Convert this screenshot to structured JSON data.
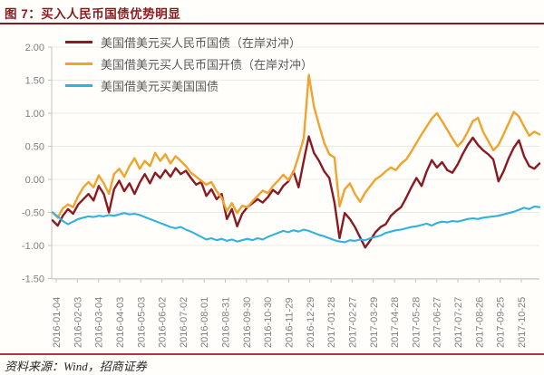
{
  "page": {
    "title": "图 7：买入人民币国债优势明显",
    "source": "资料来源：Wind，招商证券"
  },
  "colors": {
    "title_text": "#8B1B20",
    "rule_top": "#7E1D21",
    "rule_bottom": "#B03A37",
    "grid": "#E9E9E5",
    "axis": "#C3C3BF",
    "tick_label": "#7F7F7F",
    "legend_text": "#595959",
    "source_text": "#262626"
  },
  "chart_data": {
    "type": "line",
    "title": "买入人民币国债优势明显",
    "xlabel": "",
    "ylabel": "",
    "ylim": [
      -1.5,
      2.0
    ],
    "y_ticks": [
      2.0,
      1.5,
      1.0,
      0.5,
      0.0,
      -0.5,
      -1.0,
      -1.5
    ],
    "grid": "horizontal",
    "legend_position": "top-left",
    "x_tick_labels": [
      "2016-01-04",
      "2016-02-03",
      "2016-03-04",
      "2016-04-03",
      "2016-05-03",
      "2016-06-02",
      "2016-07-02",
      "2016-08-01",
      "2016-08-31",
      "2016-09-30",
      "2016-10-30",
      "2016-11-29",
      "2016-12-29",
      "2017-01-28",
      "2017-02-27",
      "2017-03-29",
      "2017-04-28",
      "2017-05-28",
      "2017-06-27",
      "2017-07-27",
      "2017-08-26",
      "2017-09-25",
      "2017-10-25"
    ],
    "series": [
      {
        "name": "美国借美元买人民币国债（在岸对冲）",
        "color": "#8A1A22",
        "values": [
          -0.62,
          -0.7,
          -0.55,
          -0.45,
          -0.52,
          -0.38,
          -0.3,
          -0.22,
          -0.32,
          -0.1,
          -0.22,
          -0.5,
          -0.15,
          -0.02,
          -0.18,
          -0.06,
          -0.22,
          -0.05,
          0.08,
          -0.06,
          0.1,
          0.02,
          0.14,
          0.04,
          0.17,
          0.08,
          0.13,
          0.02,
          -0.08,
          -0.04,
          -0.25,
          -0.15,
          -0.3,
          -0.22,
          -0.6,
          -0.45,
          -0.71,
          -0.52,
          -0.42,
          -0.36,
          -0.3,
          -0.35,
          -0.27,
          -0.16,
          -0.22,
          -0.1,
          -0.03,
          0.12,
          -0.12,
          0.28,
          0.65,
          0.4,
          0.28,
          0.12,
          0.02,
          -0.35,
          -0.89,
          -0.51,
          -0.6,
          -0.72,
          -0.88,
          -1.03,
          -0.92,
          -0.8,
          -0.72,
          -0.68,
          -0.55,
          -0.48,
          -0.42,
          -0.28,
          -0.12,
          0.02,
          -0.1,
          0.12,
          0.29,
          0.18,
          0.26,
          0.14,
          0.1,
          0.22,
          0.38,
          0.52,
          0.63,
          0.52,
          0.44,
          0.38,
          0.3,
          -0.03,
          0.12,
          0.32,
          0.48,
          0.59,
          0.35,
          0.2,
          0.16,
          0.24
        ]
      },
      {
        "name": "美国借美元买人民币国开债（在岸对冲）",
        "color": "#F0A32D",
        "values": [
          -0.5,
          -0.58,
          -0.44,
          -0.38,
          -0.42,
          -0.25,
          -0.12,
          -0.04,
          -0.12,
          0.06,
          -0.06,
          -0.22,
          0.08,
          0.16,
          0.04,
          0.2,
          0.32,
          0.16,
          0.28,
          0.2,
          0.4,
          0.28,
          0.38,
          0.24,
          0.35,
          0.28,
          0.2,
          0.1,
          0.04,
          -0.02,
          -0.08,
          -0.04,
          -0.18,
          -0.28,
          -0.48,
          -0.36,
          -0.51,
          -0.4,
          -0.42,
          -0.33,
          -0.25,
          -0.17,
          -0.21,
          -0.1,
          -0.02,
          0.07,
          -0.01,
          0.11,
          0.35,
          0.62,
          1.58,
          1.1,
          0.82,
          0.55,
          0.38,
          0.33,
          -0.41,
          -0.15,
          -0.06,
          -0.22,
          -0.34,
          -0.2,
          -0.1,
          0.0,
          0.05,
          0.12,
          0.18,
          0.14,
          0.24,
          0.3,
          0.42,
          0.55,
          0.68,
          0.8,
          0.92,
          1.0,
          0.88,
          0.75,
          0.62,
          0.5,
          0.58,
          0.72,
          0.88,
          0.93,
          0.72,
          0.58,
          0.44,
          0.52,
          0.68,
          0.85,
          1.02,
          0.95,
          0.8,
          0.66,
          0.72,
          0.68
        ]
      },
      {
        "name": "美国借美元买美国国债",
        "color": "#31B2DE",
        "values": [
          -0.5,
          -0.56,
          -0.63,
          -0.68,
          -0.64,
          -0.6,
          -0.58,
          -0.56,
          -0.57,
          -0.55,
          -0.56,
          -0.54,
          -0.55,
          -0.53,
          -0.51,
          -0.53,
          -0.52,
          -0.54,
          -0.57,
          -0.6,
          -0.63,
          -0.66,
          -0.69,
          -0.72,
          -0.74,
          -0.72,
          -0.76,
          -0.79,
          -0.83,
          -0.87,
          -0.91,
          -0.89,
          -0.92,
          -0.9,
          -0.93,
          -0.91,
          -0.94,
          -0.92,
          -0.9,
          -0.92,
          -0.89,
          -0.91,
          -0.87,
          -0.84,
          -0.81,
          -0.78,
          -0.8,
          -0.77,
          -0.79,
          -0.76,
          -0.78,
          -0.81,
          -0.84,
          -0.86,
          -0.89,
          -0.92,
          -0.94,
          -0.95,
          -0.92,
          -0.93,
          -0.91,
          -0.92,
          -0.89,
          -0.87,
          -0.85,
          -0.81,
          -0.79,
          -0.77,
          -0.76,
          -0.74,
          -0.72,
          -0.71,
          -0.69,
          -0.67,
          -0.7,
          -0.66,
          -0.64,
          -0.65,
          -0.63,
          -0.64,
          -0.62,
          -0.6,
          -0.59,
          -0.6,
          -0.58,
          -0.57,
          -0.56,
          -0.55,
          -0.53,
          -0.51,
          -0.49,
          -0.46,
          -0.43,
          -0.45,
          -0.41,
          -0.42
        ]
      }
    ]
  }
}
